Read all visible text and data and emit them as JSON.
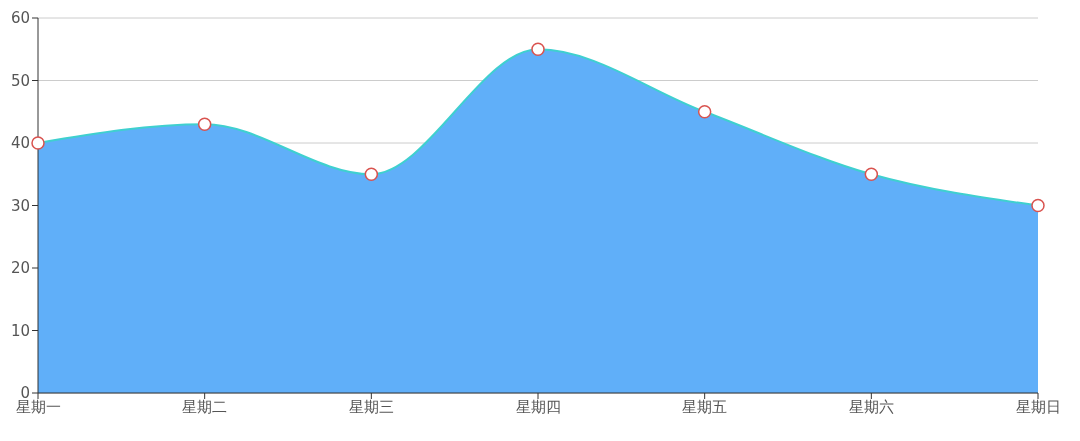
{
  "chart_data": {
    "type": "area",
    "categories": [
      "星期一",
      "星期二",
      "星期三",
      "星期四",
      "星期五",
      "星期六",
      "星期日"
    ],
    "series": [
      {
        "color": "#60aff9",
        "values": [
          40,
          43,
          35,
          55,
          45,
          35,
          30
        ]
      }
    ],
    "ylim": [
      0,
      60
    ],
    "yticks": [
      0,
      10,
      20,
      30,
      40,
      50,
      60
    ],
    "grid": "y",
    "marker": "circle",
    "legend": false
  }
}
